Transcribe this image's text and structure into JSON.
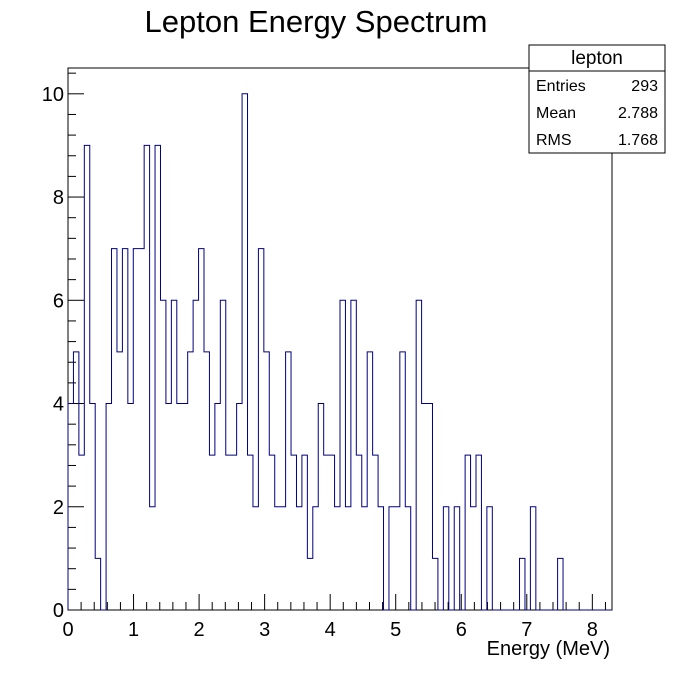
{
  "chart_data": {
    "type": "histogram",
    "title": "Lepton Energy Spectrum",
    "xlabel": "Energy (MeV)",
    "ylabel": "",
    "xlim": [
      0,
      8.3
    ],
    "ylim": [
      0,
      10.5
    ],
    "bin_width": 0.083,
    "x_ticks": [
      0,
      1,
      2,
      3,
      4,
      5,
      6,
      7,
      8
    ],
    "y_ticks": [
      0,
      2,
      4,
      6,
      8,
      10
    ],
    "grid": false,
    "line_color": "#00007f",
    "bin_contents": [
      4,
      5,
      3,
      9,
      4,
      1,
      0,
      4,
      7,
      5,
      7,
      4,
      7,
      7,
      9,
      2,
      9,
      6,
      4,
      6,
      4,
      4,
      5,
      6,
      7,
      5,
      3,
      4,
      6,
      3,
      3,
      4,
      10,
      3,
      2,
      7,
      5,
      3,
      2,
      2,
      5,
      3,
      2,
      3,
      1,
      2,
      4,
      3,
      3,
      2,
      6,
      2,
      6,
      3,
      2,
      5,
      3,
      2,
      0,
      2,
      2,
      5,
      2,
      0,
      6,
      4,
      4,
      1,
      0,
      2,
      0,
      2,
      0,
      3,
      2,
      3,
      0,
      2,
      0,
      0,
      0,
      0,
      0,
      1,
      0,
      2,
      0,
      0,
      0,
      0,
      1,
      0,
      0,
      0,
      0,
      0,
      0,
      0,
      0,
      0
    ],
    "stats_box": {
      "name": "lepton",
      "entries_label": "Entries",
      "entries_value": "293",
      "mean_label": "Mean",
      "mean_value": "2.788",
      "rms_label": "RMS",
      "rms_value": "1.768"
    }
  }
}
